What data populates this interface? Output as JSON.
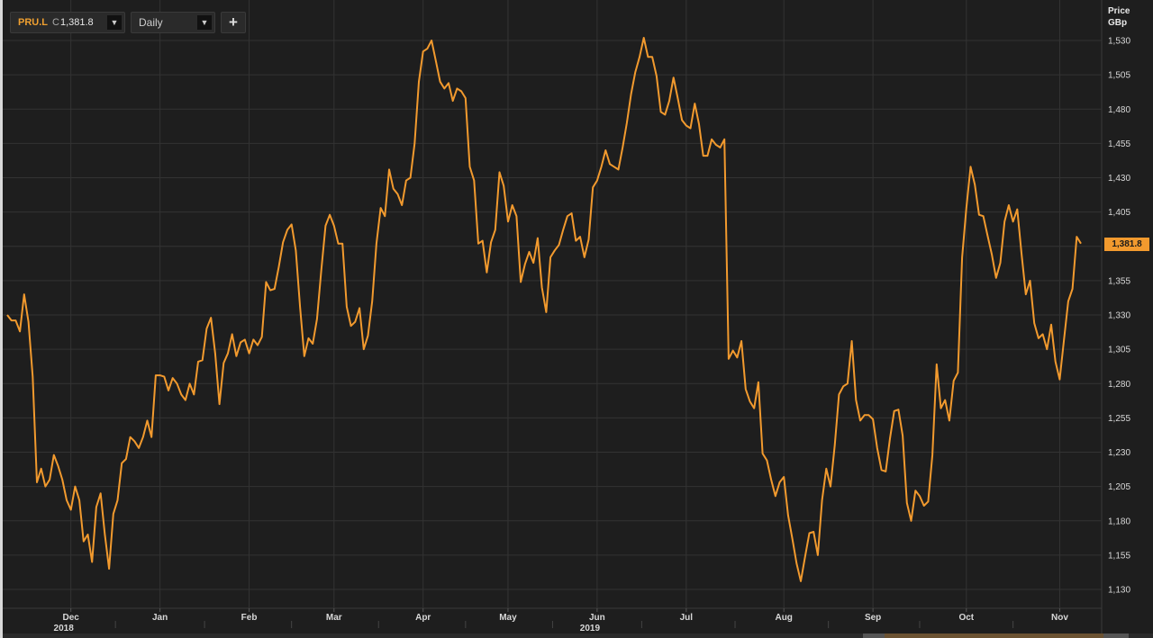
{
  "toolbar": {
    "ric": "PRU.L",
    "close_tag": "C",
    "close_value": "1,381.8",
    "interval": "Daily",
    "add_label": "+",
    "dropdown_glyph": "▼"
  },
  "axis": {
    "title_line1": "Price",
    "title_line2": "GBp"
  },
  "last_price_label": "1,381.8",
  "colors": {
    "line": "#f29a2e",
    "background": "#1e1e1e",
    "grid": "#333333"
  },
  "chart_data": {
    "type": "line",
    "title": "",
    "xlabel": "",
    "ylabel": "Price GBp",
    "ylim": [
      1110,
      1540
    ],
    "yticks": [
      1130,
      1155,
      1180,
      1205,
      1230,
      1255,
      1280,
      1305,
      1330,
      1355,
      1380,
      1405,
      1430,
      1455,
      1480,
      1505,
      1530
    ],
    "ytick_labels": [
      "1,130",
      "1,155",
      "1,180",
      "1,205",
      "1,230",
      "1,255",
      "1,280",
      "1,305",
      "1,330",
      "1,355",
      "1,380",
      "1,405",
      "1,430",
      "1,455",
      "1,480",
      "1,505",
      "1,530"
    ],
    "xticks": [
      {
        "label": "Dec",
        "index": 15
      },
      {
        "label": "Jan",
        "index": 36
      },
      {
        "label": "Feb",
        "index": 57
      },
      {
        "label": "Mar",
        "index": 77
      },
      {
        "label": "Apr",
        "index": 98
      },
      {
        "label": "May",
        "index": 118
      },
      {
        "label": "Jun",
        "index": 139
      },
      {
        "label": "Jul",
        "index": 160
      },
      {
        "label": "Aug",
        "index": 183
      },
      {
        "label": "Sep",
        "index": 204
      },
      {
        "label": "Oct",
        "index": 226
      },
      {
        "label": "Nov",
        "index": 248
      }
    ],
    "year_labels": [
      {
        "label": "2018",
        "index": 15
      },
      {
        "label": "2019",
        "index": 139
      }
    ],
    "grid": true,
    "last_value": 1381.8,
    "series": [
      {
        "values": [
          1330,
          1326,
          1326,
          1318,
          1345,
          1325,
          1285,
          1208,
          1218,
          1205,
          1210,
          1228,
          1220,
          1210,
          1195,
          1188,
          1205,
          1195,
          1165,
          1170,
          1150,
          1190,
          1200,
          1170,
          1145,
          1185,
          1195,
          1222,
          1225,
          1241,
          1238,
          1233,
          1241,
          1253,
          1241,
          1286,
          1286,
          1285,
          1275,
          1284,
          1280,
          1272,
          1268,
          1280,
          1272,
          1296,
          1297,
          1320,
          1328,
          1302,
          1265,
          1295,
          1302,
          1316,
          1300,
          1310,
          1312,
          1302,
          1312,
          1308,
          1314,
          1354,
          1348,
          1349,
          1365,
          1383,
          1392,
          1396,
          1377,
          1336,
          1300,
          1313,
          1309,
          1327,
          1362,
          1395,
          1403,
          1395,
          1382,
          1382,
          1336,
          1322,
          1325,
          1335,
          1305,
          1315,
          1340,
          1382,
          1408,
          1402,
          1436,
          1422,
          1418,
          1410,
          1428,
          1430,
          1455,
          1500,
          1522,
          1524,
          1530,
          1515,
          1500,
          1495,
          1499,
          1486,
          1495,
          1493,
          1488,
          1438,
          1428,
          1382,
          1384,
          1361,
          1383,
          1392,
          1434,
          1424,
          1398,
          1410,
          1402,
          1354,
          1367,
          1376,
          1368,
          1386,
          1350,
          1332,
          1372,
          1377,
          1381,
          1392,
          1402,
          1404,
          1384,
          1387,
          1372,
          1385,
          1423,
          1428,
          1438,
          1450,
          1440,
          1438,
          1436,
          1452,
          1470,
          1491,
          1507,
          1518,
          1532,
          1518,
          1518,
          1504,
          1478,
          1476,
          1486,
          1503,
          1488,
          1472,
          1468,
          1466,
          1484,
          1469,
          1446,
          1446,
          1458,
          1454,
          1452,
          1458,
          1298,
          1304,
          1299,
          1311,
          1276,
          1267,
          1262,
          1281,
          1229,
          1224,
          1210,
          1198,
          1208,
          1212,
          1184,
          1167,
          1149,
          1136,
          1154,
          1171,
          1172,
          1155,
          1195,
          1218,
          1205,
          1235,
          1272,
          1278,
          1280,
          1311,
          1268,
          1253,
          1257,
          1257,
          1254,
          1233,
          1217,
          1216,
          1240,
          1260,
          1261,
          1242,
          1193,
          1180,
          1202,
          1198,
          1191,
          1194,
          1228,
          1294,
          1262,
          1268,
          1253,
          1282,
          1288,
          1372,
          1408,
          1438,
          1425,
          1403,
          1402,
          1388,
          1374,
          1357,
          1368,
          1398,
          1410,
          1398,
          1407,
          1375,
          1345,
          1355,
          1324,
          1313,
          1316,
          1305,
          1323,
          1296,
          1283,
          1312,
          1340,
          1349,
          1387,
          1382
        ]
      }
    ]
  }
}
